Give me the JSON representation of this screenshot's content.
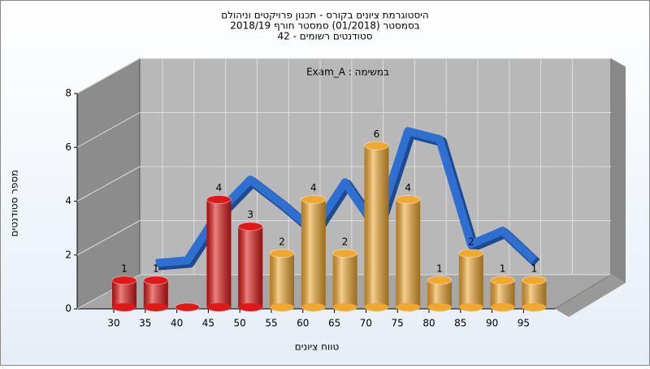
{
  "chart_data": {
    "type": "bar",
    "title": [
      "היסטוגרמת ציונים בקורס - תכנון פרויקטים וניהולם",
      "בסמסטר  (01/2018)  סמסטר חורף 2018/19",
      "סטודנטים רשומים - 42"
    ],
    "annotation": "Exam_A : במשימה",
    "x_label": "טווח ציונים",
    "y_label": "מספר סטודנטים",
    "categories": [
      "30",
      "35",
      "40",
      "45",
      "50",
      "55",
      "60",
      "65",
      "70",
      "75",
      "80",
      "85",
      "90",
      "95"
    ],
    "values": [
      1,
      1,
      0,
      4,
      3,
      2,
      4,
      2,
      6,
      4,
      1,
      2,
      1,
      1
    ],
    "colors": [
      "#e01818",
      "#e01818",
      "#e01818",
      "#e01818",
      "#e01818",
      "#f0a830",
      "#f0a830",
      "#f0a830",
      "#f0a830",
      "#f0a830",
      "#f0a830",
      "#f0a830",
      "#f0a830",
      "#f0a830"
    ],
    "curve": {
      "color": "#2f6fd0",
      "values": [
        null,
        1.7,
        1.8,
        3.6,
        4.8,
        3.9,
        2.9,
        4.7,
        3.0,
        6.6,
        6.3,
        2.4,
        2.9,
        1.8
      ]
    },
    "ylim": [
      0,
      8
    ],
    "yticks": [
      0,
      2,
      4,
      6,
      8
    ],
    "grid": true
  }
}
